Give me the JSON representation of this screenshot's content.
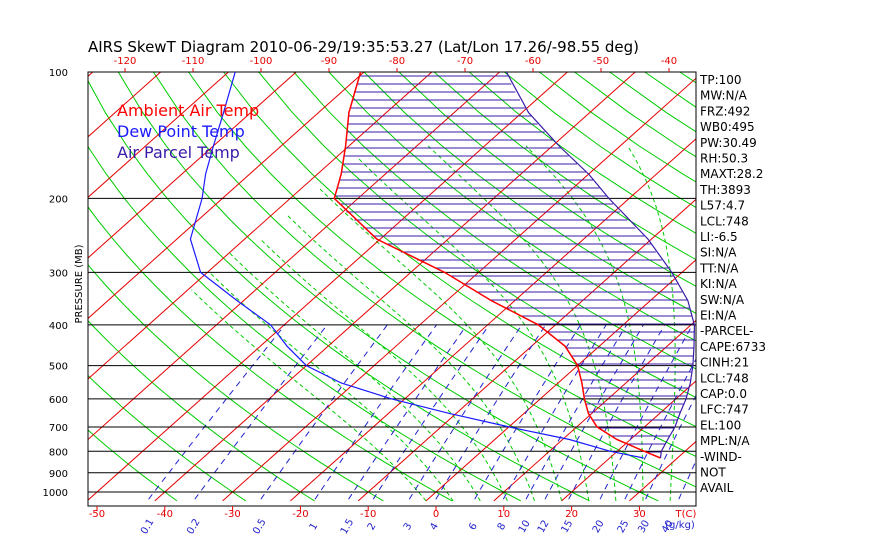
{
  "chart_data": {
    "type": "line",
    "title": "AIRS SkewT Diagram 2010-06-29/19:35:53.27 (Lat/Lon 17.26/-98.55 deg)",
    "ylabel": "PRESSURE (MB)",
    "xlabel": "T(C)",
    "mixing_ratio_unit": "(g/kg)",
    "y_scale": "log",
    "ylim": [
      1000,
      100
    ],
    "pressure_ticks": [
      100,
      200,
      300,
      400,
      500,
      600,
      700,
      800,
      900,
      1000
    ],
    "bottom_temp_ticks": [
      -50,
      -40,
      -30,
      -20,
      -10,
      0,
      10,
      20,
      30
    ],
    "top_temp_ticks": [
      -120,
      -110,
      -100,
      -90,
      -80,
      -70,
      -60,
      -50,
      -40
    ],
    "mixing_ratio_labels": [
      "0.1",
      "0.2",
      "0.5",
      "1",
      "1.5",
      "2",
      "3",
      "4",
      "6",
      "8",
      "10",
      "12",
      "15",
      "20",
      "25",
      "30",
      "40"
    ],
    "legend": [
      {
        "name": "Ambient Air Temp",
        "color": "#ff0000"
      },
      {
        "name": "Dew Point Temp",
        "color": "#1a1aff"
      },
      {
        "name": "Air Parcel Temp",
        "color": "#3a1aa8"
      }
    ],
    "colors": {
      "isotherm": "#e60000",
      "dry_adiabat": "#00cc00",
      "moist_adiabat": "#00cc00",
      "mixing_ratio": "#2222cc",
      "isobar": "#000000",
      "cape_hatch": "#3a1aa8"
    },
    "series": [
      {
        "name": "Ambient Air Temp",
        "points": [
          [
            100,
            -80.5
          ],
          [
            125,
            -75.5
          ],
          [
            150,
            -70.5
          ],
          [
            175,
            -66.5
          ],
          [
            200,
            -63.5
          ],
          [
            250,
            -50.5
          ],
          [
            300,
            -35
          ],
          [
            350,
            -23.5
          ],
          [
            400,
            -12.5
          ],
          [
            450,
            -5
          ],
          [
            500,
            0
          ],
          [
            550,
            3.5
          ],
          [
            600,
            6.5
          ],
          [
            650,
            9.5
          ],
          [
            700,
            13
          ],
          [
            750,
            18
          ],
          [
            800,
            24
          ],
          [
            830,
            27.5
          ]
        ]
      },
      {
        "name": "Dew Point Temp",
        "points": [
          [
            100,
            -99
          ],
          [
            125,
            -94
          ],
          [
            150,
            -90
          ],
          [
            175,
            -86.5
          ],
          [
            200,
            -83
          ],
          [
            250,
            -78
          ],
          [
            300,
            -71
          ],
          [
            350,
            -61
          ],
          [
            400,
            -52
          ],
          [
            450,
            -46
          ],
          [
            500,
            -40
          ],
          [
            550,
            -32
          ],
          [
            600,
            -22
          ],
          [
            650,
            -11
          ],
          [
            700,
            0
          ],
          [
            750,
            11
          ],
          [
            800,
            19
          ],
          [
            830,
            25
          ]
        ]
      },
      {
        "name": "Air Parcel Temp",
        "points": [
          [
            100,
            -59
          ],
          [
            125,
            -49
          ],
          [
            150,
            -39
          ],
          [
            175,
            -30
          ],
          [
            200,
            -23
          ],
          [
            250,
            -10.5
          ],
          [
            300,
            -1.5
          ],
          [
            350,
            5.5
          ],
          [
            400,
            10.5
          ],
          [
            450,
            14
          ],
          [
            500,
            17
          ],
          [
            550,
            19.5
          ],
          [
            600,
            21.5
          ],
          [
            650,
            23
          ],
          [
            700,
            24.5
          ],
          [
            750,
            25.5
          ],
          [
            800,
            26.5
          ],
          [
            830,
            27.5
          ]
        ]
      }
    ],
    "indices": [
      "TP:100",
      "MW:N/A",
      "FRZ:492",
      "WB0:495",
      "PW:30.49",
      "RH:50.3",
      "MAXT:28.2",
      "TH:3893",
      "L57:4.7",
      "LCL:748",
      "LI:-6.5",
      "SI:N/A",
      "TT:N/A",
      "KI:N/A",
      "SW:N/A",
      "EI:N/A",
      "-PARCEL-",
      "CAPE:6733",
      "CINH:21",
      "LCL:748",
      "CAP:0.0",
      "LFC:747",
      "EL:100",
      "MPL:N/A",
      "-WIND-",
      "NOT",
      "AVAIL"
    ]
  }
}
